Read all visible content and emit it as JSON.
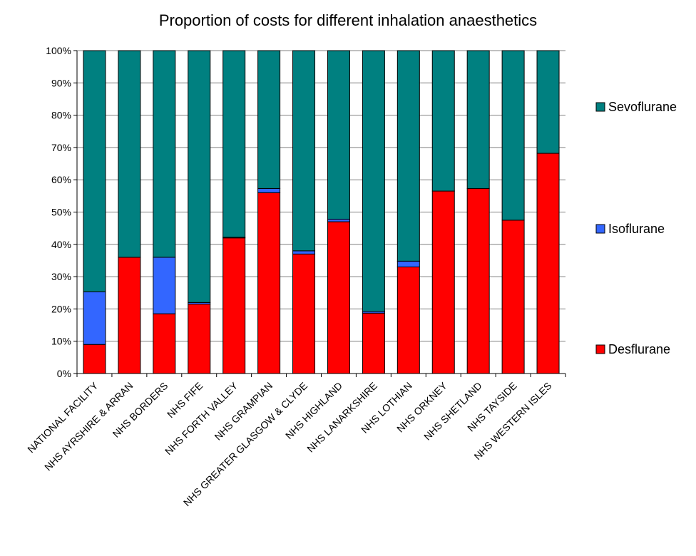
{
  "chart_data": {
    "type": "bar",
    "stacked": true,
    "title": "Proportion of costs for different inhalation anaesthetics",
    "xlabel": "",
    "ylabel": "",
    "ylim": [
      0,
      100
    ],
    "yticks": [
      "0%",
      "10%",
      "20%",
      "30%",
      "40%",
      "50%",
      "60%",
      "70%",
      "80%",
      "90%",
      "100%"
    ],
    "grid": true,
    "legend_position": "right",
    "categories": [
      "NATIONAL FACILITY",
      "NHS AYRSHIRE & ARRAN",
      "NHS BORDERS",
      "NHS FIFE",
      "NHS FORTH VALLEY",
      "NHS GRAMPIAN",
      "NHS GREATER GLASGOW & CLYDE",
      "NHS HIGHLAND",
      "NHS LANARKSHIRE",
      "NHS LOTHIAN",
      "NHS ORKNEY",
      "NHS SHETLAND",
      "NHS TAYSIDE",
      "NHS WESTERN ISLES"
    ],
    "series": [
      {
        "name": "Desflurane",
        "color": "#ff0000",
        "values": [
          9,
          36,
          18.5,
          21.5,
          42,
          56,
          37,
          47,
          18.7,
          33,
          56.5,
          57.3,
          47.5,
          68.2
        ]
      },
      {
        "name": "Isoflurane",
        "color": "#3366ff",
        "values": [
          16.3,
          0,
          17.5,
          0.5,
          0.2,
          1.3,
          1,
          0.8,
          0.5,
          1.8,
          0,
          0,
          0,
          0
        ]
      },
      {
        "name": "Sevoflurane",
        "color": "#008080",
        "values": [
          74.7,
          64,
          64,
          78,
          57.8,
          42.7,
          62,
          52.2,
          80.8,
          65.2,
          43.5,
          42.7,
          52.5,
          31.8
        ]
      }
    ]
  }
}
